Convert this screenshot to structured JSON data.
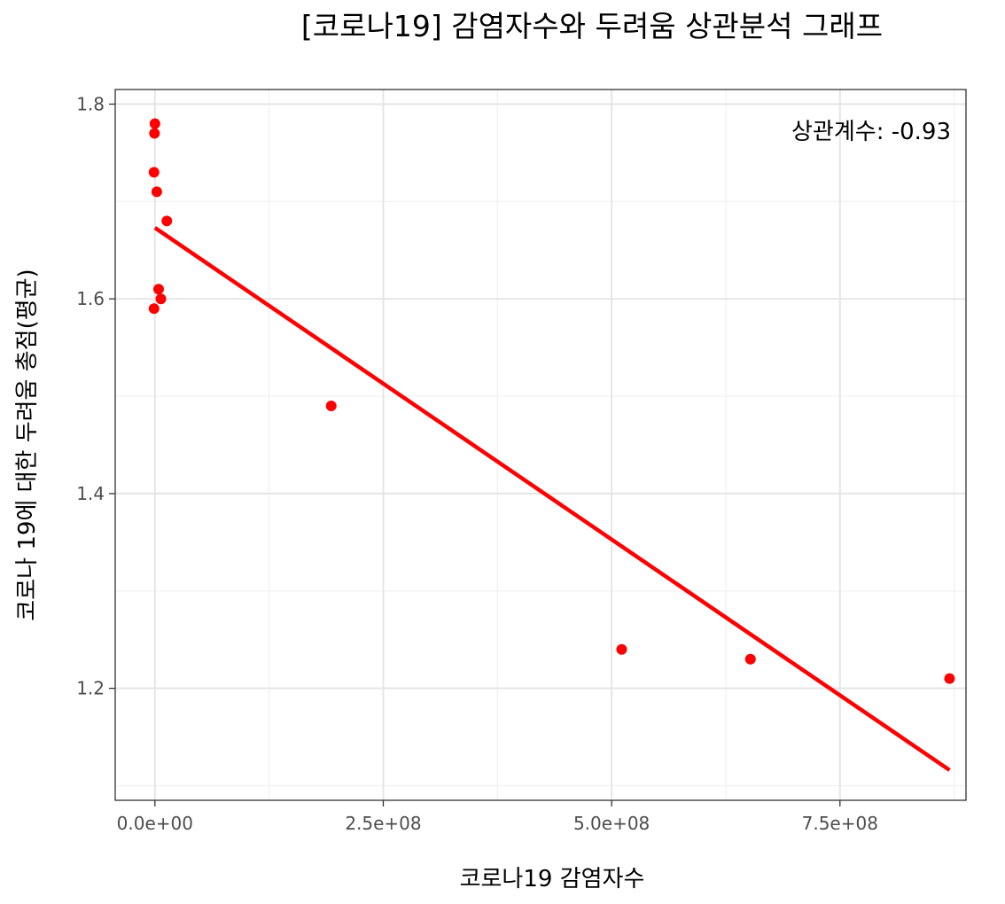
{
  "chart_data": {
    "type": "scatter",
    "title": "[코로나19] 감염자수와 두려움 상관분석 그래프",
    "xlabel": "코로나19 감염자수",
    "ylabel": "코로나 19에 대한 두려움 총점(평균)",
    "annotation": "상관계수: -0.93",
    "xlim": [
      -43500000,
      888000000
    ],
    "ylim": [
      1.085,
      1.815
    ],
    "x_ticks": [
      {
        "value": 0,
        "label": "0.0e+00"
      },
      {
        "value": 250000000,
        "label": "2.5e+08"
      },
      {
        "value": 500000000,
        "label": "5.0e+08"
      },
      {
        "value": 750000000,
        "label": "7.5e+08"
      }
    ],
    "x_minor_ticks": [
      125000000,
      375000000,
      625000000,
      875000000
    ],
    "y_ticks": [
      {
        "value": 1.2,
        "label": "1.2"
      },
      {
        "value": 1.4,
        "label": "1.4"
      },
      {
        "value": 1.6,
        "label": "1.6"
      },
      {
        "value": 1.8,
        "label": "1.8"
      }
    ],
    "y_minor_ticks": [
      1.1,
      1.3,
      1.5,
      1.7
    ],
    "points": [
      {
        "x": 0,
        "y": 1.78
      },
      {
        "x": -500000,
        "y": 1.77
      },
      {
        "x": -1000000,
        "y": 1.73
      },
      {
        "x": 2000000,
        "y": 1.71
      },
      {
        "x": 13000000,
        "y": 1.68
      },
      {
        "x": 4000000,
        "y": 1.61
      },
      {
        "x": 6500000,
        "y": 1.6
      },
      {
        "x": -1000000,
        "y": 1.59
      },
      {
        "x": 193000000,
        "y": 1.49
      },
      {
        "x": 511000000,
        "y": 1.24
      },
      {
        "x": 652000000,
        "y": 1.23
      },
      {
        "x": 870000000,
        "y": 1.21
      }
    ],
    "trend_line": {
      "x": [
        0,
        870000000
      ],
      "y": [
        1.673,
        1.116
      ]
    },
    "colors": {
      "points": "#ff0000",
      "trend_line": "#ff0000"
    },
    "grid": true
  }
}
